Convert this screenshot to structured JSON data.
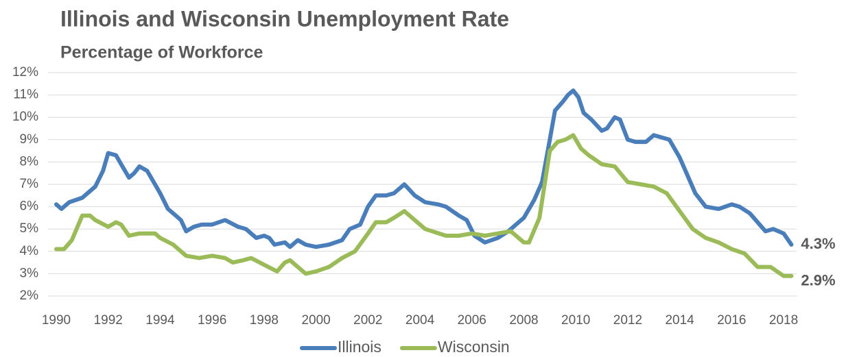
{
  "chart_data": {
    "type": "line",
    "title": "Illinois and Wisconsin Unemployment Rate",
    "subtitle": "Percentage of Workforce",
    "xlim": [
      1990,
      2018.5
    ],
    "xticks": [
      1990,
      1992,
      1994,
      1996,
      1998,
      2000,
      2002,
      2004,
      2006,
      2008,
      2010,
      2012,
      2014,
      2016,
      2018
    ],
    "ylim": [
      2,
      12
    ],
    "yticks": [
      {
        "value": 2,
        "label": "2%"
      },
      {
        "value": 3,
        "label": "3%"
      },
      {
        "value": 4,
        "label": "4%"
      },
      {
        "value": 5,
        "label": "5%"
      },
      {
        "value": 6,
        "label": "6%"
      },
      {
        "value": 7,
        "label": "7%"
      },
      {
        "value": 8,
        "label": "8%"
      },
      {
        "value": 9,
        "label": "9%"
      },
      {
        "value": 10,
        "label": "10%"
      },
      {
        "value": 11,
        "label": "11%"
      },
      {
        "value": 12,
        "label": "12%"
      }
    ],
    "grid": true,
    "legend": "bottom",
    "series": [
      {
        "name": "Illinois",
        "color": "#4a7ebb",
        "x": [
          1990,
          1990.2,
          1990.5,
          1991,
          1991.5,
          1991.8,
          1992,
          1992.3,
          1992.5,
          1992.8,
          1993,
          1993.2,
          1993.5,
          1993.8,
          1994,
          1994.3,
          1994.6,
          1994.8,
          1995,
          1995.3,
          1995.6,
          1996,
          1996.5,
          1997,
          1997.3,
          1997.7,
          1998,
          1998.2,
          1998.4,
          1998.8,
          1999,
          1999.3,
          1999.6,
          2000,
          2000.5,
          2001,
          2001.3,
          2001.7,
          2002,
          2002.3,
          2002.7,
          2003,
          2003.4,
          2003.8,
          2004.2,
          2004.7,
          2005,
          2005.5,
          2005.8,
          2006.1,
          2006.5,
          2007,
          2007.4,
          2007.8,
          2008,
          2008.4,
          2008.7,
          2009,
          2009.2,
          2009.5,
          2009.7,
          2009.9,
          2010.1,
          2010.3,
          2010.6,
          2011,
          2011.2,
          2011.5,
          2011.7,
          2012,
          2012.3,
          2012.7,
          2013,
          2013.3,
          2013.6,
          2014,
          2014.3,
          2014.6,
          2015,
          2015.5,
          2016,
          2016.3,
          2016.7,
          2017,
          2017.3,
          2017.6,
          2018,
          2018.3
        ],
        "values": [
          6.1,
          5.9,
          6.2,
          6.4,
          6.9,
          7.6,
          8.4,
          8.3,
          7.9,
          7.3,
          7.5,
          7.8,
          7.6,
          7.0,
          6.6,
          5.9,
          5.6,
          5.4,
          4.9,
          5.1,
          5.2,
          5.2,
          5.4,
          5.1,
          5.0,
          4.6,
          4.7,
          4.6,
          4.3,
          4.4,
          4.2,
          4.5,
          4.3,
          4.2,
          4.3,
          4.5,
          5.0,
          5.2,
          6.0,
          6.5,
          6.5,
          6.6,
          7.0,
          6.5,
          6.2,
          6.1,
          6.0,
          5.6,
          5.4,
          4.7,
          4.4,
          4.6,
          4.9,
          5.3,
          5.5,
          6.3,
          7.1,
          9.0,
          10.3,
          10.7,
          11.0,
          11.2,
          10.9,
          10.2,
          9.9,
          9.4,
          9.5,
          10.0,
          9.9,
          9.0,
          8.9,
          8.9,
          9.2,
          9.1,
          9.0,
          8.2,
          7.4,
          6.6,
          6.0,
          5.9,
          6.1,
          6.0,
          5.7,
          5.3,
          4.9,
          5.0,
          4.8,
          4.3
        ],
        "value_labels": [
          null,
          null,
          null,
          null,
          null,
          null,
          null,
          null,
          null,
          null,
          null,
          null,
          null,
          null,
          null,
          null,
          null,
          null,
          null,
          null,
          null,
          null,
          null,
          null,
          null,
          null,
          null,
          null,
          null,
          null,
          null,
          null,
          null,
          null,
          null,
          null,
          null,
          null,
          null,
          null,
          null,
          null,
          null,
          null,
          null,
          null,
          null,
          null,
          null,
          null,
          null,
          null,
          null,
          null,
          null,
          null,
          null,
          null,
          null,
          null,
          null,
          null,
          null,
          null,
          null,
          null,
          null,
          null,
          null,
          null,
          null,
          null,
          null,
          null,
          null,
          null,
          null,
          null,
          null,
          null,
          null,
          null,
          null,
          null,
          null,
          null,
          null,
          "4.3%"
        ]
      },
      {
        "name": "Wisconsin",
        "color": "#9bbb59",
        "x": [
          1990,
          1990.3,
          1990.6,
          1991,
          1991.3,
          1991.5,
          1992,
          1992.3,
          1992.5,
          1992.8,
          1993.2,
          1993.5,
          1993.8,
          1994,
          1994.5,
          1995,
          1995.5,
          1996,
          1996.5,
          1996.8,
          1997.2,
          1997.5,
          1998,
          1998.5,
          1998.8,
          1999,
          1999.3,
          1999.6,
          2000,
          2000.5,
          2001,
          2001.5,
          2002,
          2002.3,
          2002.7,
          2003,
          2003.4,
          2003.8,
          2004.2,
          2005,
          2005.5,
          2006,
          2006.5,
          2007,
          2007.5,
          2008,
          2008.2,
          2008.6,
          2009,
          2009.3,
          2009.6,
          2009.9,
          2010.2,
          2010.5,
          2011,
          2011.5,
          2012,
          2012.5,
          2013,
          2013.5,
          2014,
          2014.5,
          2015,
          2015.5,
          2016,
          2016.5,
          2017,
          2017.5,
          2018,
          2018.3
        ],
        "values": [
          4.1,
          4.1,
          4.5,
          5.6,
          5.6,
          5.4,
          5.1,
          5.3,
          5.2,
          4.7,
          4.8,
          4.8,
          4.8,
          4.6,
          4.3,
          3.8,
          3.7,
          3.8,
          3.7,
          3.5,
          3.6,
          3.7,
          3.4,
          3.1,
          3.5,
          3.6,
          3.3,
          3.0,
          3.1,
          3.3,
          3.7,
          4.0,
          4.8,
          5.3,
          5.3,
          5.5,
          5.8,
          5.4,
          5.0,
          4.7,
          4.7,
          4.8,
          4.7,
          4.8,
          4.9,
          4.4,
          4.4,
          5.5,
          8.5,
          8.9,
          9.0,
          9.2,
          8.6,
          8.3,
          7.9,
          7.8,
          7.1,
          7.0,
          6.9,
          6.6,
          5.8,
          5.0,
          4.6,
          4.4,
          4.1,
          3.9,
          3.3,
          3.3,
          2.9,
          2.9
        ],
        "value_labels": [
          null,
          null,
          null,
          null,
          null,
          null,
          null,
          null,
          null,
          null,
          null,
          null,
          null,
          null,
          null,
          null,
          null,
          null,
          null,
          null,
          null,
          null,
          null,
          null,
          null,
          null,
          null,
          null,
          null,
          null,
          null,
          null,
          null,
          null,
          null,
          null,
          null,
          null,
          null,
          null,
          null,
          null,
          null,
          null,
          null,
          null,
          null,
          null,
          null,
          null,
          null,
          null,
          null,
          null,
          null,
          null,
          null,
          null,
          null,
          null,
          null,
          null,
          null,
          null,
          null,
          null,
          null,
          null,
          null,
          "2.9%"
        ]
      }
    ]
  }
}
